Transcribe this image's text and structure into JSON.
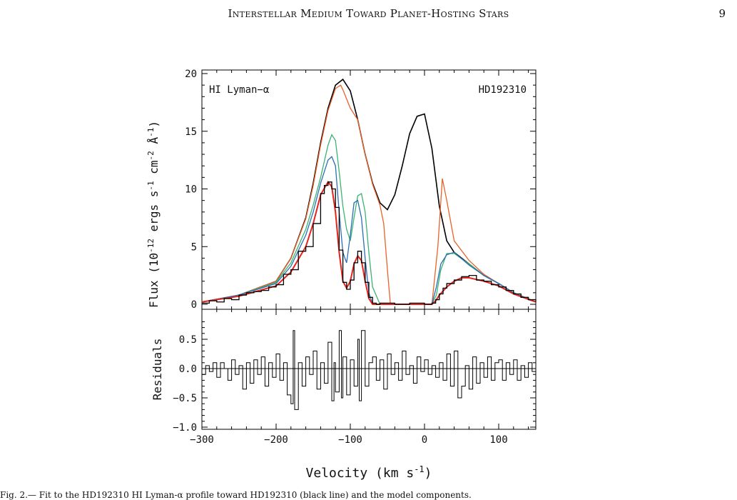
{
  "header": {
    "running_title": "Interstellar Medium Toward Planet-Hosting Stars",
    "page_number": "9"
  },
  "figure": {
    "top_label_left": "HI Lyman−α",
    "top_label_right": "HD192310",
    "ylabel_top": "Flux (10^-12 ergs s^-1 cm^-2 Å^-1)",
    "ylabel_bottom": "Residuals",
    "xlabel": "Velocity (km s^-1)"
  },
  "caption": {
    "text": "Fig. 2.— Fit to the HD192310 HI Lyman-α profile toward HD192310 (black line) and the model components."
  },
  "colors": {
    "intrinsic": "#000000",
    "ism_component_1": "#e8632a",
    "ism_component_2": "#3cb371",
    "ism_component_3": "#2b6fb5",
    "model": "#e8231c",
    "observed": "#000000"
  },
  "chart_data": [
    {
      "type": "line",
      "title": "",
      "top_label_left": "HI Lyman−α",
      "top_label_right": "HD192310",
      "xlim": [
        -300,
        150
      ],
      "ylim": [
        0,
        20
      ],
      "xticks": [
        -300,
        -200,
        -100,
        0,
        100
      ],
      "yticks": [
        0,
        5,
        10,
        15,
        20
      ],
      "grid": false,
      "legend": "none",
      "series": [
        {
          "color": "#000000",
          "x": [
            -300,
            -250,
            -200,
            -180,
            -160,
            -150,
            -140,
            -130,
            -120,
            -110,
            -100,
            -90,
            -80,
            -70,
            -60,
            -50,
            -40,
            -30,
            -20,
            -10,
            0,
            10,
            20,
            30,
            40,
            60,
            80,
            100,
            120,
            150
          ],
          "y": [
            0.2,
            0.8,
            2.0,
            4.0,
            7.5,
            10.5,
            14.0,
            17.0,
            19.0,
            19.5,
            18.5,
            16.0,
            13.0,
            10.5,
            8.8,
            8.2,
            9.5,
            12.0,
            14.8,
            16.3,
            16.5,
            13.5,
            8.5,
            5.5,
            4.5,
            3.5,
            2.5,
            1.8,
            1.0,
            0.2
          ]
        },
        {
          "color": "#e8632a",
          "x": [
            -300,
            -250,
            -200,
            -180,
            -160,
            -150,
            -140,
            -130,
            -120,
            -113,
            -110,
            -100,
            -90,
            -80,
            -70,
            -60,
            -55,
            -50,
            -46,
            -40,
            10,
            18,
            24,
            30,
            40,
            60,
            80,
            100,
            120,
            150
          ],
          "y": [
            0.2,
            0.8,
            2.0,
            4.0,
            7.4,
            10.3,
            13.8,
            16.8,
            18.7,
            19.0,
            18.6,
            17.0,
            16.0,
            13.0,
            10.4,
            8.6,
            7.0,
            3.0,
            0.0,
            0.0,
            0.0,
            5.0,
            10.9,
            9.0,
            5.5,
            3.8,
            2.6,
            1.8,
            1.0,
            0.2
          ]
        },
        {
          "color": "#3cb371",
          "x": [
            -300,
            -250,
            -200,
            -180,
            -160,
            -150,
            -140,
            -130,
            -125,
            -120,
            -115,
            -110,
            -105,
            -100,
            -95,
            -90,
            -85,
            -80,
            -75,
            -70,
            -60,
            10,
            16,
            22,
            30,
            40,
            60,
            80,
            100,
            120,
            150
          ],
          "y": [
            0.2,
            0.8,
            1.9,
            3.6,
            6.5,
            8.6,
            11.0,
            13.8,
            14.7,
            14.2,
            11.5,
            8.5,
            6.5,
            5.5,
            7.5,
            9.4,
            9.6,
            8.0,
            4.5,
            1.5,
            0.0,
            0.0,
            0.8,
            3.0,
            4.4,
            4.4,
            3.5,
            2.5,
            1.8,
            1.0,
            0.2
          ]
        },
        {
          "color": "#2b6fb5",
          "x": [
            -300,
            -250,
            -200,
            -180,
            -160,
            -150,
            -140,
            -130,
            -125,
            -120,
            -115,
            -110,
            -105,
            -100,
            -95,
            -90,
            -85,
            -80,
            -75,
            -70,
            10,
            16,
            22,
            30,
            40,
            60,
            80,
            100,
            120,
            150
          ],
          "y": [
            0.2,
            0.8,
            1.8,
            3.3,
            6.0,
            8.0,
            10.5,
            12.5,
            12.8,
            12.0,
            8.0,
            4.5,
            3.6,
            6.0,
            8.8,
            9.0,
            7.5,
            4.0,
            1.0,
            0.0,
            0.0,
            1.5,
            3.5,
            4.3,
            4.5,
            3.4,
            2.5,
            1.8,
            1.0,
            0.2
          ]
        },
        {
          "color": "#e8231c",
          "x": [
            -300,
            -250,
            -200,
            -180,
            -160,
            -150,
            -140,
            -130,
            -125,
            -120,
            -115,
            -110,
            -105,
            -100,
            -95,
            -90,
            -85,
            -80,
            -75,
            -70,
            -65,
            10,
            15,
            20,
            30,
            40,
            50,
            60,
            80,
            100,
            120,
            150
          ],
          "y": [
            0.2,
            0.7,
            1.6,
            2.8,
            5.0,
            7.0,
            9.5,
            10.6,
            10.2,
            8.0,
            4.5,
            2.0,
            1.4,
            2.0,
            3.5,
            4.2,
            3.8,
            2.0,
            0.5,
            0.0,
            0.0,
            0.0,
            0.3,
            0.8,
            1.5,
            2.0,
            2.3,
            2.3,
            2.0,
            1.6,
            0.9,
            0.2
          ]
        },
        {
          "color": "#000000",
          "x": [
            -300,
            -290,
            -280,
            -270,
            -260,
            -250,
            -240,
            -230,
            -220,
            -210,
            -200,
            -190,
            -180,
            -170,
            -160,
            -150,
            -140,
            -135,
            -130,
            -125,
            -120,
            -115,
            -110,
            -105,
            -100,
            -95,
            -90,
            -85,
            -80,
            -75,
            -70,
            -65,
            -60,
            -40,
            -20,
            0,
            10,
            15,
            20,
            25,
            30,
            40,
            50,
            60,
            70,
            80,
            90,
            100,
            110,
            120,
            130,
            140,
            150
          ],
          "y": [
            0.1,
            0.3,
            0.2,
            0.5,
            0.4,
            0.8,
            1.0,
            1.1,
            1.2,
            1.5,
            1.7,
            2.6,
            3.0,
            4.6,
            5.0,
            7.0,
            9.6,
            10.3,
            10.6,
            10.0,
            8.4,
            4.7,
            1.9,
            1.3,
            2.1,
            3.6,
            4.6,
            3.6,
            1.9,
            0.6,
            0.1,
            0.0,
            0.1,
            0.0,
            0.1,
            0.0,
            0.1,
            0.4,
            0.9,
            1.4,
            1.8,
            2.1,
            2.4,
            2.5,
            2.1,
            2.0,
            1.7,
            1.5,
            1.2,
            0.9,
            0.6,
            0.4,
            0.2
          ]
        }
      ]
    },
    {
      "type": "line",
      "ylabel": "Residuals",
      "xlim": [
        -300,
        150
      ],
      "ylim": [
        -1.1,
        0.9
      ],
      "xticks": [
        -300,
        -200,
        -100,
        0,
        100
      ],
      "yticks": [
        -1.0,
        -0.5,
        0.0,
        0.5
      ],
      "ytick_labels": [
        "−1.0",
        "−0.5",
        "0.0",
        "0.5"
      ],
      "grid": false,
      "reference_line": 0.0,
      "series": [
        {
          "color": "#000000",
          "x": [
            -300,
            -295,
            -290,
            -285,
            -280,
            -275,
            -270,
            -265,
            -260,
            -255,
            -250,
            -245,
            -240,
            -235,
            -230,
            -225,
            -220,
            -215,
            -210,
            -205,
            -200,
            -195,
            -190,
            -185,
            -180,
            -177,
            -175,
            -170,
            -165,
            -160,
            -155,
            -150,
            -145,
            -140,
            -135,
            -130,
            -125,
            -122,
            -120,
            -115,
            -112,
            -110,
            -105,
            -100,
            -95,
            -90,
            -88,
            -85,
            -80,
            -75,
            -70,
            -65,
            -60,
            -55,
            -50,
            -45,
            -40,
            -35,
            -30,
            -25,
            -20,
            -15,
            -10,
            -5,
            0,
            5,
            10,
            15,
            20,
            25,
            30,
            35,
            40,
            45,
            50,
            55,
            60,
            65,
            70,
            75,
            80,
            85,
            90,
            95,
            100,
            105,
            110,
            115,
            120,
            125,
            130,
            135,
            140,
            145,
            150
          ],
          "y": [
            -0.1,
            0.05,
            -0.05,
            0.1,
            -0.15,
            0.1,
            0.0,
            -0.2,
            0.15,
            -0.1,
            0.05,
            -0.35,
            0.1,
            -0.25,
            0.15,
            -0.1,
            0.2,
            -0.3,
            0.1,
            -0.15,
            0.25,
            -0.2,
            0.1,
            -0.45,
            -0.6,
            0.65,
            -0.7,
            0.1,
            -0.3,
            0.2,
            -0.1,
            0.3,
            -0.35,
            0.1,
            -0.25,
            0.45,
            -0.55,
            0.1,
            -0.4,
            0.65,
            -0.5,
            0.2,
            -0.45,
            0.15,
            -0.3,
            0.5,
            -0.55,
            0.65,
            -0.3,
            0.1,
            0.2,
            -0.2,
            0.15,
            -0.35,
            0.25,
            -0.1,
            0.1,
            -0.2,
            0.3,
            -0.1,
            0.05,
            -0.25,
            0.2,
            -0.05,
            0.15,
            -0.1,
            0.05,
            -0.15,
            0.1,
            -0.2,
            0.25,
            -0.3,
            0.3,
            -0.5,
            -0.3,
            0.05,
            -0.35,
            0.2,
            -0.25,
            0.1,
            -0.15,
            0.2,
            -0.2,
            0.1,
            0.15,
            -0.2,
            0.1,
            -0.1,
            0.15,
            -0.2,
            0.05,
            -0.15,
            0.1,
            -0.05,
            0.15
          ]
        }
      ]
    }
  ]
}
